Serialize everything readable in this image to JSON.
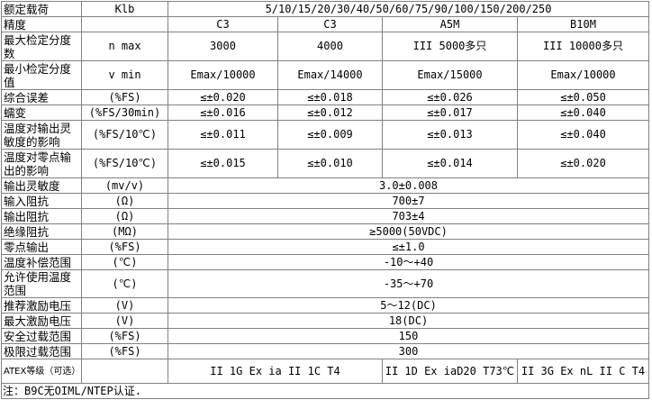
{
  "header": {
    "label": "额定载荷",
    "unit": "Klb",
    "value": "5/10/15/20/30/40/50/60/75/90/100/150/200/250"
  },
  "precision": {
    "label": "精度",
    "unit": "",
    "values": [
      "C3",
      "C3",
      "A5M",
      "B10M"
    ]
  },
  "rows4": [
    {
      "label": "最大检定分度数",
      "unit": "n max",
      "values": [
        "3000",
        "4000",
        "III 5000多只",
        "III 10000多只"
      ]
    },
    {
      "label": "最小检定分度值",
      "unit": "v min",
      "values": [
        "Emax/10000",
        "Emax/14000",
        "Emax/15000",
        "Emax/10000"
      ]
    },
    {
      "label": "综合误差",
      "unit": "(%FS)",
      "values": [
        "≤±0.020",
        "≤±0.018",
        "≤±0.026",
        "≤±0.050"
      ]
    },
    {
      "label": "蠕变",
      "unit": "(%FS/30min)",
      "values": [
        "≤±0.016",
        "≤±0.012",
        "≤±0.017",
        "≤±0.040"
      ]
    },
    {
      "label": "温度对输出灵敏度的影响",
      "unit": "(%FS/10℃)",
      "values": [
        "≤±0.011",
        "≤±0.009",
        "≤±0.013",
        "≤±0.040"
      ]
    },
    {
      "label": "温度对零点输出的影响",
      "unit": "(%FS/10℃)",
      "values": [
        "≤±0.015",
        "≤±0.010",
        "≤±0.014",
        "≤±0.020"
      ]
    }
  ],
  "rows1": [
    {
      "label": "输出灵敏度",
      "unit": "(mv/v)",
      "value": "3.0±0.008"
    },
    {
      "label": "输入阻抗",
      "unit": "(Ω)",
      "value": "700±7"
    },
    {
      "label": "输出阻抗",
      "unit": "(Ω)",
      "value": "703±4"
    },
    {
      "label": "绝缘阻抗",
      "unit": "(MΩ)",
      "value": "≥5000(50VDC)"
    },
    {
      "label": "零点输出",
      "unit": "(%FS)",
      "value": "≤±1.0"
    },
    {
      "label": "温度补偿范围",
      "unit": "(℃)",
      "value": "-10～+40"
    },
    {
      "label": "允许使用温度范围",
      "unit": "(℃)",
      "value": "-35～+70"
    },
    {
      "label": "推荐激励电压",
      "unit": "(V)",
      "value": "5～12(DC)"
    },
    {
      "label": "最大激励电压",
      "unit": "(V)",
      "value": "18(DC)"
    },
    {
      "label": "安全过载范围",
      "unit": "(%FS)",
      "value": "150"
    },
    {
      "label": "极限过载范围",
      "unit": "(%FS)",
      "value": "300"
    }
  ],
  "atex": {
    "label": "ATEX等级（可选）",
    "unit": "",
    "values": [
      "II 1G Ex ia II 1C T4",
      "II 1D Ex iaD20 T73℃",
      "II 3G Ex nL II C T4"
    ]
  },
  "note": "注：B9C无OIML/NTEP认证."
}
